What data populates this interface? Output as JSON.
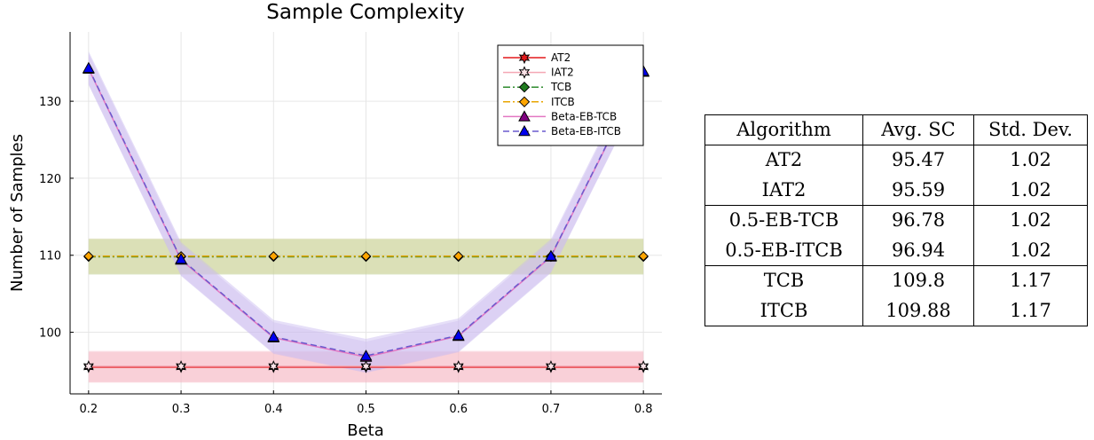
{
  "chart_data": {
    "type": "line",
    "title": "Sample Complexity",
    "xlabel": "Beta",
    "ylabel": "Number of Samples",
    "xlim": [
      0.18,
      0.82
    ],
    "ylim": [
      92,
      139
    ],
    "x_ticks": [
      "0.2",
      "0.3",
      "0.4",
      "0.5",
      "0.6",
      "0.7",
      "0.8"
    ],
    "y_ticks": [
      "100",
      "110",
      "120",
      "130"
    ],
    "grid": true,
    "legend_position": "top-right",
    "x": [
      0.2,
      0.3,
      0.4,
      0.5,
      0.6,
      0.7,
      0.8
    ],
    "series": [
      {
        "name": "AT2",
        "values": [
          95.47,
          95.47,
          95.47,
          95.47,
          95.47,
          95.47,
          95.47
        ],
        "band": 2.0,
        "color": "#e31a1c",
        "fill": "#e31a1c",
        "band_color": "#f4a6b4",
        "marker": "star6",
        "dash": "solid"
      },
      {
        "name": "IAT2",
        "values": [
          95.59,
          95.59,
          95.59,
          95.59,
          95.59,
          95.59,
          95.59
        ],
        "band": 2.0,
        "color": "#f4a6b4",
        "fill": "#fbe3e8",
        "band_color": "#f8c8d2",
        "marker": "star6",
        "dash": "solid"
      },
      {
        "name": "TCB",
        "values": [
          109.8,
          109.8,
          109.8,
          109.8,
          109.8,
          109.8,
          109.8
        ],
        "band": 2.3,
        "color": "#2e8b2e",
        "fill": "#1f7a1f",
        "band_color": "#b5c98a",
        "marker": "diamond",
        "dash": "dashdot"
      },
      {
        "name": "ITCB",
        "values": [
          109.88,
          109.88,
          109.88,
          109.88,
          109.88,
          109.88,
          109.88
        ],
        "band": 2.3,
        "color": "#e8a500",
        "fill": "#ffa500",
        "band_color": "#d8d8a0",
        "marker": "diamond",
        "dash": "dashdot"
      },
      {
        "name": "Beta-EB-TCB",
        "values": [
          134.2,
          109.4,
          99.3,
          96.78,
          99.5,
          109.8,
          133.8
        ],
        "band": 2.0,
        "color": "#e377c2",
        "fill": "#800080",
        "band_color": "#d8c8f0",
        "marker": "triangle",
        "dash": "solid"
      },
      {
        "name": "Beta-EB-ITCB",
        "values": [
          134.3,
          109.5,
          99.4,
          96.94,
          99.6,
          109.9,
          133.9
        ],
        "band": 2.2,
        "color": "#6a5acd",
        "fill": "#0000ee",
        "band_color": "#c8b8f0",
        "marker": "triangle",
        "dash": "dashed"
      }
    ]
  },
  "table": {
    "headers": [
      "Algorithm",
      "Avg. SC",
      "Std. Dev."
    ],
    "groups": [
      [
        [
          "AT2",
          "95.47",
          "1.02"
        ],
        [
          "IAT2",
          "95.59",
          "1.02"
        ]
      ],
      [
        [
          "0.5-EB-TCB",
          "96.78",
          "1.02"
        ],
        [
          "0.5-EB-ITCB",
          "96.94",
          "1.02"
        ]
      ],
      [
        [
          "TCB",
          "109.8",
          "1.17"
        ],
        [
          "ITCB",
          "109.88",
          "1.17"
        ]
      ]
    ]
  }
}
